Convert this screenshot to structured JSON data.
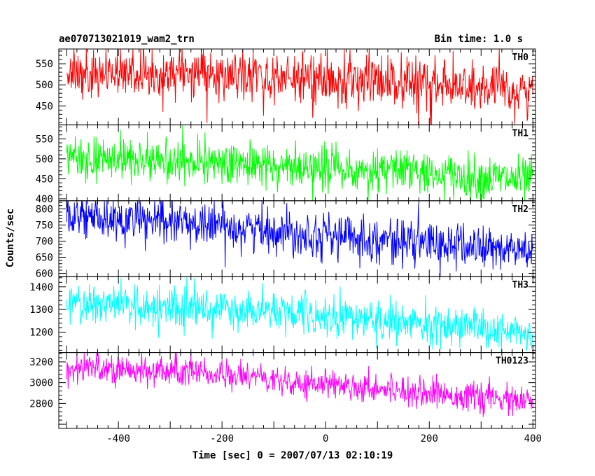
{
  "chart_data": {
    "type": "line",
    "title": "ae070713021019_wam2_trn",
    "subtitle": "Bin time: 1.0 s",
    "xlabel": "Time [sec] 0 = 2007/07/13 02:10:19",
    "ylabel": "Counts/sec",
    "xlim": [
      -515,
      405
    ],
    "x_range": [
      -500,
      400
    ],
    "xticks": [
      -400,
      -200,
      0,
      200,
      400
    ],
    "grid": false,
    "panels": [
      {
        "name": "TH0",
        "color": "#ff0000",
        "ylim": [
          405,
          585
        ],
        "yticks": [
          450,
          500,
          550
        ],
        "trend": [
          [
            -500,
            528
          ],
          [
            -200,
            522
          ],
          [
            100,
            505
          ],
          [
            400,
            482
          ]
        ],
        "noise": 30
      },
      {
        "name": "TH1",
        "color": "#00ff00",
        "ylim": [
          395,
          585
        ],
        "yticks": [
          400,
          450,
          500,
          550
        ],
        "trend": [
          [
            -500,
            505
          ],
          [
            -200,
            490
          ],
          [
            100,
            470
          ],
          [
            400,
            445
          ]
        ],
        "noise": 28
      },
      {
        "name": "TH2",
        "color": "#0000ff",
        "ylim": [
          590,
          825
        ],
        "yticks": [
          600,
          650,
          700,
          750,
          800
        ],
        "trend": [
          [
            -500,
            775
          ],
          [
            -200,
            748
          ],
          [
            100,
            705
          ],
          [
            400,
            668
          ]
        ],
        "noise": 35
      },
      {
        "name": "TH3",
        "color": "#00ffff",
        "ylim": [
          1110,
          1445
        ],
        "yticks": [
          1200,
          1300,
          1400
        ],
        "trend": [
          [
            -500,
            1325
          ],
          [
            -200,
            1300
          ],
          [
            100,
            1255
          ],
          [
            400,
            1195
          ]
        ],
        "noise": 45
      },
      {
        "name": "TH0123",
        "color": "#ff00ff",
        "ylim": [
          2560,
          3290
        ],
        "yticks": [
          2800,
          3000,
          3200
        ],
        "trend": [
          [
            -500,
            3150
          ],
          [
            -200,
            3080
          ],
          [
            100,
            2950
          ],
          [
            400,
            2810
          ]
        ],
        "noise": 70
      }
    ]
  }
}
